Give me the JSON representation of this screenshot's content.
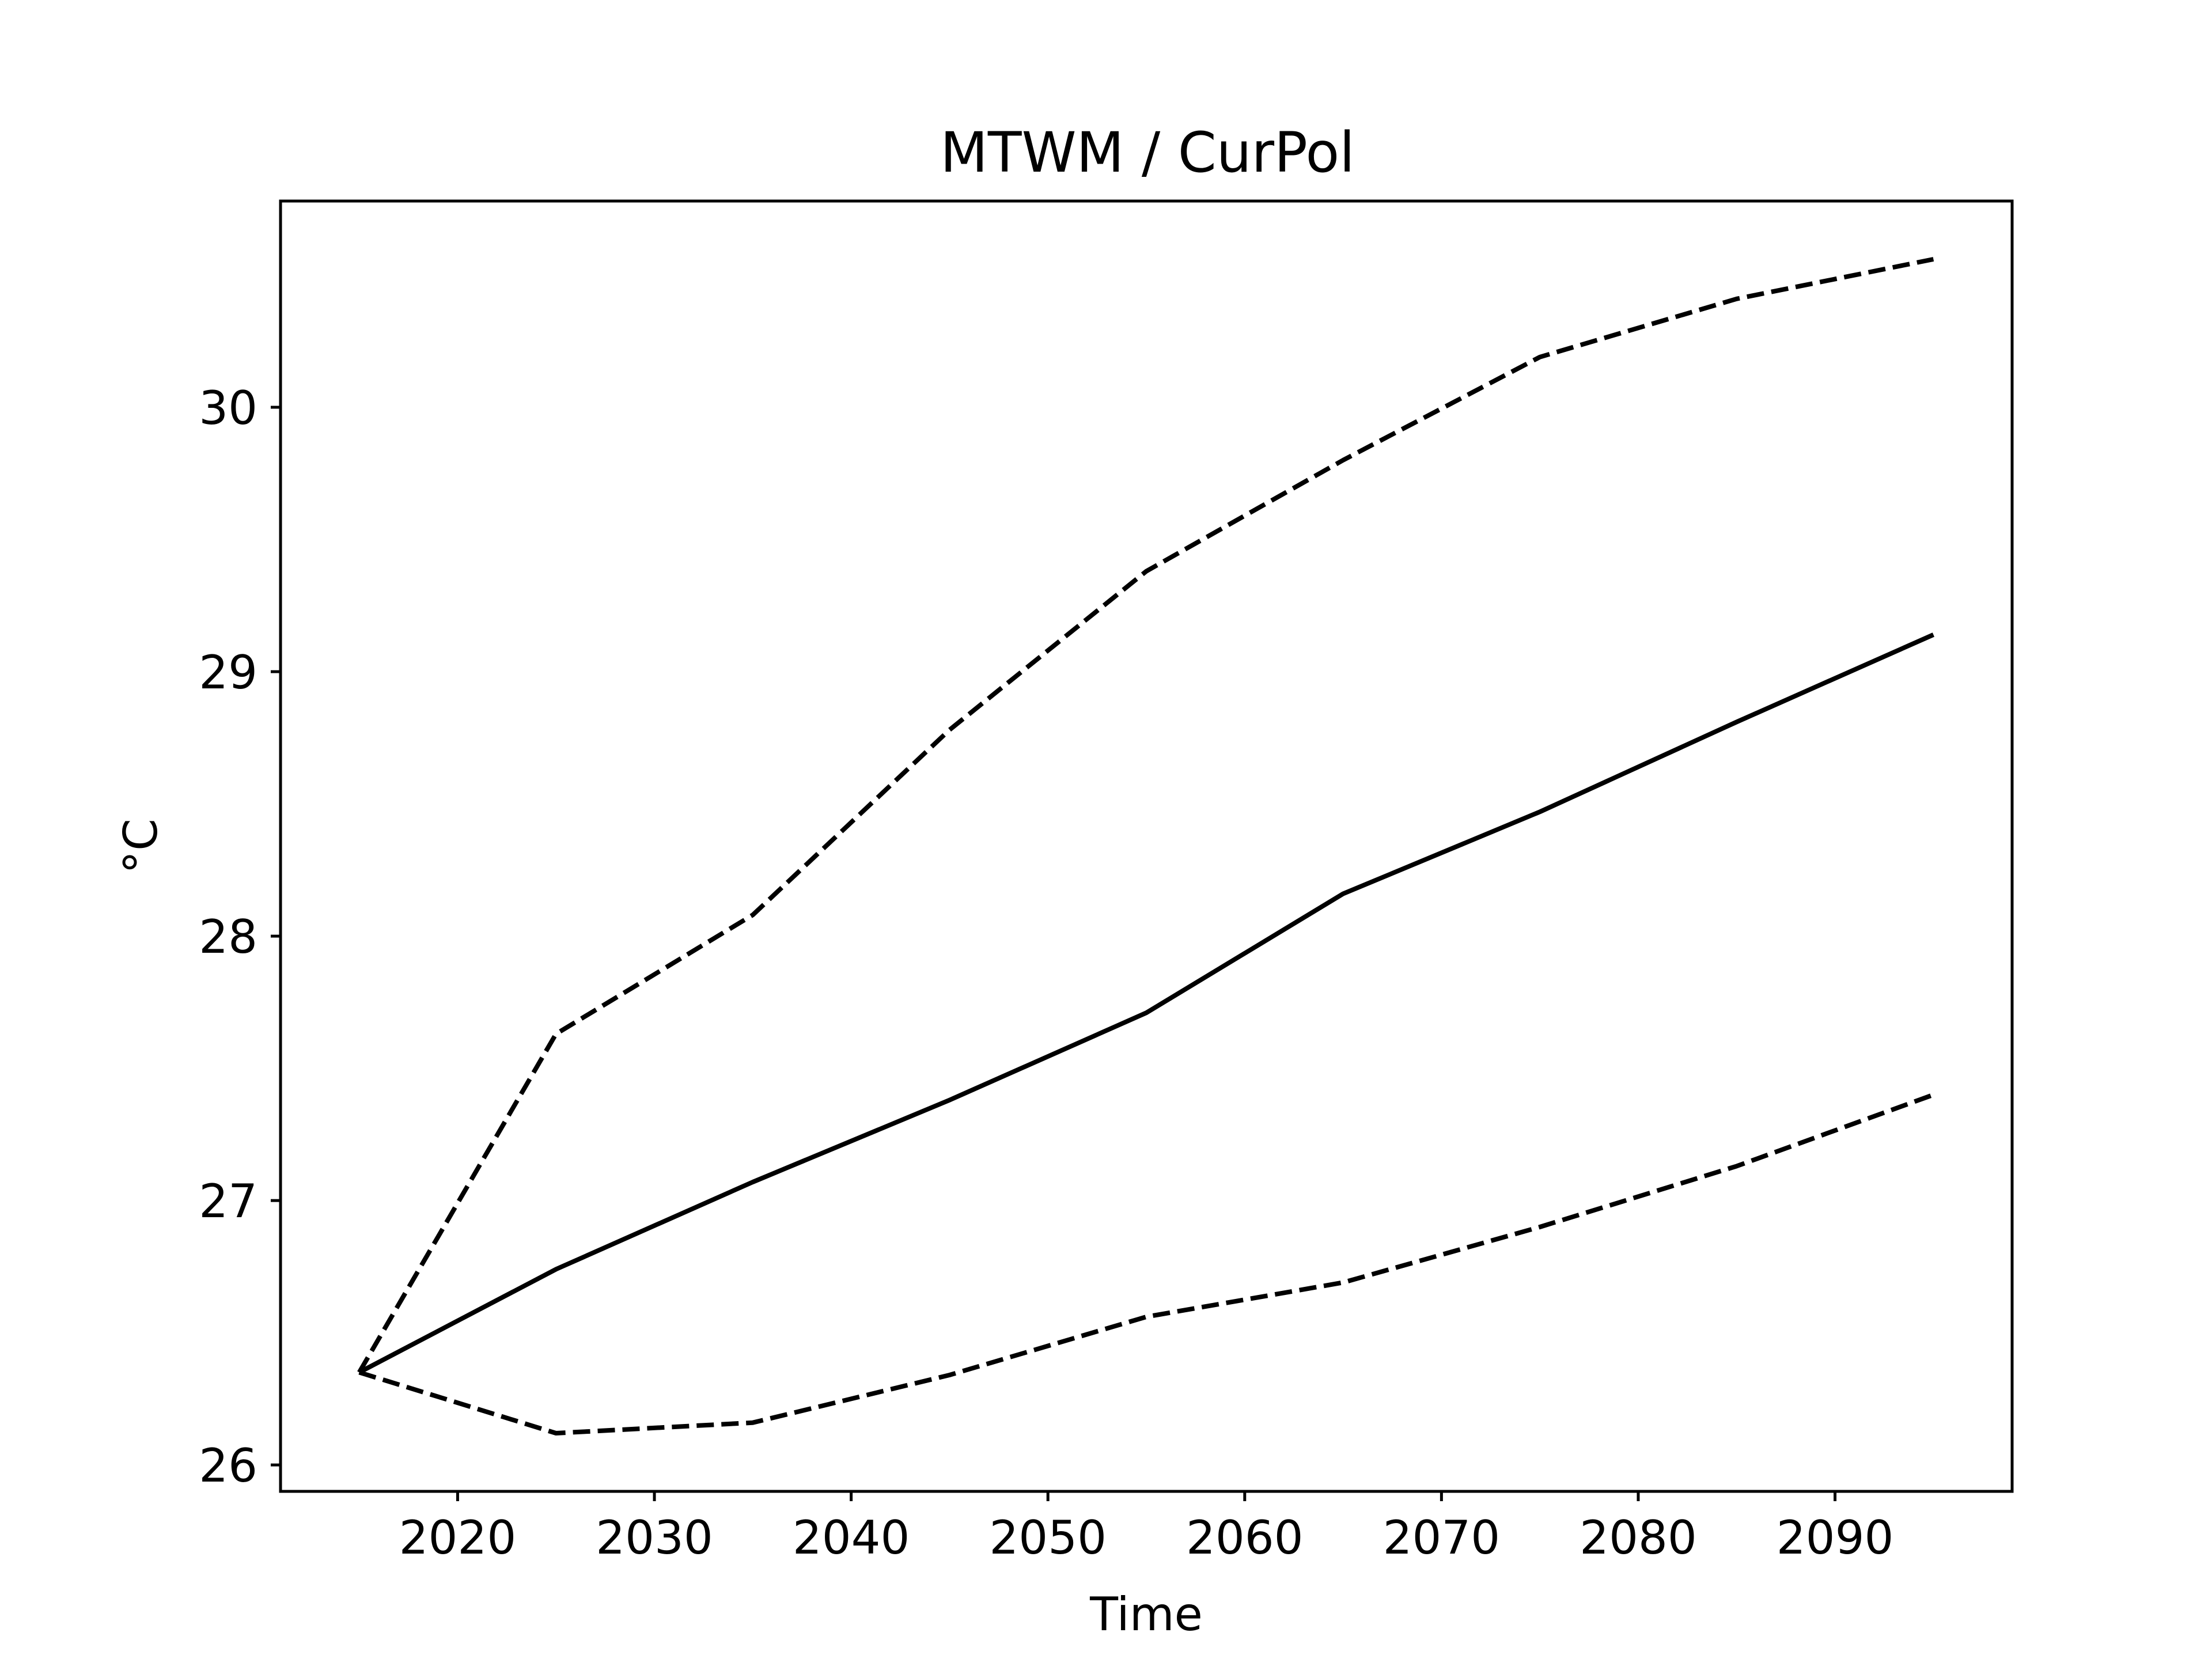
{
  "chart_data": {
    "type": "line",
    "title": "MTWM / CurPol",
    "xlabel": "Time",
    "ylabel": "°C",
    "xlim": [
      2011,
      2099
    ],
    "ylim": [
      25.9,
      30.78
    ],
    "xticks": [
      2020,
      2030,
      2040,
      2050,
      2060,
      2070,
      2080,
      2090
    ],
    "yticks": [
      26,
      27,
      28,
      29,
      30
    ],
    "grid": false,
    "x": [
      2015,
      2025,
      2035,
      2045,
      2055,
      2065,
      2075,
      2085,
      2095
    ],
    "series": [
      {
        "style": "dashed",
        "color": "#000000",
        "values": [
          26.35,
          27.63,
          28.08,
          28.78,
          29.38,
          29.8,
          30.19,
          30.41,
          30.56
        ]
      },
      {
        "style": "solid",
        "color": "#000000",
        "values": [
          26.35,
          26.74,
          27.07,
          27.38,
          27.71,
          28.16,
          28.47,
          28.81,
          29.14
        ]
      },
      {
        "style": "dashed",
        "color": "#000000",
        "values": [
          26.35,
          26.12,
          26.16,
          26.34,
          26.56,
          26.69,
          26.9,
          27.13,
          27.4
        ]
      }
    ]
  }
}
